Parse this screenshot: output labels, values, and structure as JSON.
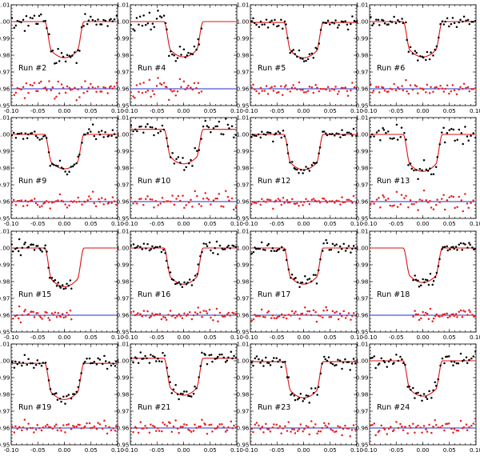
{
  "chart_data": [
    {
      "type": "scatter",
      "label": "Run #2",
      "x_ticks": [
        "-0.10",
        "-0.05",
        "0.00",
        "0.05",
        "0.10"
      ],
      "y_ticks": [
        "0.95",
        "0.96",
        "0.97",
        "0.98",
        "0.99",
        "1.00",
        "1.01"
      ],
      "xlim": [
        -0.1,
        0.1
      ],
      "ylim": [
        0.95,
        1.01
      ],
      "depth": 0.0215,
      "t14": 0.074,
      "baseline": 1.0,
      "range": [
        -0.1,
        0.1
      ],
      "n": 58,
      "scatter": 0.0022,
      "seed": 2
    },
    {
      "type": "scatter",
      "label": "Run #4",
      "x_ticks": [
        "-0.10",
        "-0.05",
        "0.00",
        "0.05",
        "0.10"
      ],
      "y_ticks": [
        "0.95",
        "0.96",
        "0.97",
        "0.98",
        "0.99",
        "1.00",
        "1.01"
      ],
      "xlim": [
        -0.1,
        0.1
      ],
      "ylim": [
        0.95,
        1.01
      ],
      "depth": 0.021,
      "t14": 0.074,
      "baseline": 1.0,
      "range": [
        -0.1,
        0.035
      ],
      "n": 40,
      "scatter": 0.003,
      "seed": 4
    },
    {
      "type": "scatter",
      "label": "Run #5",
      "x_ticks": [
        "-0.10",
        "-0.05",
        "0.00",
        "0.05",
        "0.10"
      ],
      "y_ticks": [
        "0.95",
        "0.96",
        "0.97",
        "0.98",
        "0.99",
        "1.00",
        "1.01"
      ],
      "xlim": [
        -0.1,
        0.1
      ],
      "ylim": [
        0.95,
        1.01
      ],
      "depth": 0.021,
      "t14": 0.074,
      "baseline": 0.9995,
      "range": [
        -0.1,
        0.1
      ],
      "n": 58,
      "scatter": 0.0018,
      "seed": 5
    },
    {
      "type": "scatter",
      "label": "Run #6",
      "x_ticks": [
        "-0.10",
        "-0.05",
        "0.00",
        "0.05",
        "0.10"
      ],
      "y_ticks": [
        "0.95",
        "0.96",
        "0.97",
        "0.98",
        "0.99",
        "1.00",
        "1.01"
      ],
      "xlim": [
        -0.1,
        0.1
      ],
      "ylim": [
        0.95,
        1.01
      ],
      "depth": 0.021,
      "t14": 0.074,
      "baseline": 1.0,
      "range": [
        -0.1,
        0.1
      ],
      "n": 58,
      "scatter": 0.0018,
      "seed": 6
    },
    {
      "type": "scatter",
      "label": "Run #9",
      "x_ticks": [
        "-0.10",
        "-0.05",
        "0.00",
        "0.05",
        "0.10"
      ],
      "y_ticks": [
        "0.95",
        "0.96",
        "0.97",
        "0.98",
        "0.99",
        "1.00",
        "1.01"
      ],
      "xlim": [
        -0.1,
        0.1
      ],
      "ylim": [
        0.95,
        1.01
      ],
      "depth": 0.0205,
      "t14": 0.074,
      "baseline": 1.0,
      "range": [
        -0.1,
        0.1
      ],
      "n": 58,
      "scatter": 0.0016,
      "seed": 9
    },
    {
      "type": "scatter",
      "label": "Run #10",
      "x_ticks": [
        "-0.10",
        "-0.05",
        "0.00",
        "0.05",
        "0.10"
      ],
      "y_ticks": [
        "0.95",
        "0.96",
        "0.97",
        "0.98",
        "0.99",
        "1.00",
        "1.01"
      ],
      "xlim": [
        -0.1,
        0.1
      ],
      "ylim": [
        0.95,
        1.01
      ],
      "depth": 0.0205,
      "t14": 0.074,
      "baseline": 1.003,
      "range": [
        -0.1,
        0.1
      ],
      "n": 52,
      "scatter": 0.0025,
      "seed": 10
    },
    {
      "type": "scatter",
      "label": "Run #12",
      "x_ticks": [
        "-0.10",
        "-0.05",
        "0.00",
        "0.05",
        "0.10"
      ],
      "y_ticks": [
        "0.95",
        "0.96",
        "0.97",
        "0.98",
        "0.99",
        "1.00",
        "1.01"
      ],
      "xlim": [
        -0.1,
        0.1
      ],
      "ylim": [
        0.95,
        1.01
      ],
      "depth": 0.021,
      "t14": 0.074,
      "baseline": 1.0,
      "range": [
        -0.1,
        0.1
      ],
      "n": 60,
      "scatter": 0.0016,
      "seed": 12
    },
    {
      "type": "scatter",
      "label": "Run #13",
      "x_ticks": [
        "-0.10",
        "-0.05",
        "0.00",
        "0.05",
        "0.10"
      ],
      "y_ticks": [
        "0.95",
        "0.96",
        "0.97",
        "0.98",
        "0.99",
        "1.00",
        "1.01"
      ],
      "xlim": [
        -0.1,
        0.1
      ],
      "ylim": [
        0.95,
        1.01
      ],
      "depth": 0.022,
      "t14": 0.074,
      "baseline": 1.0,
      "range": [
        -0.1,
        0.1
      ],
      "n": 54,
      "scatter": 0.0028,
      "seed": 13
    },
    {
      "type": "scatter",
      "label": "Run #15",
      "x_ticks": [
        "-0.10",
        "-0.05",
        "0.00",
        "0.05",
        "0.10"
      ],
      "y_ticks": [
        "0.95",
        "0.96",
        "0.97",
        "0.98",
        "0.99",
        "1.00",
        "1.01"
      ],
      "xlim": [
        -0.1,
        0.1
      ],
      "ylim": [
        0.95,
        1.01
      ],
      "depth": 0.023,
      "t14": 0.074,
      "baseline": 1.0,
      "range": [
        -0.1,
        0.015
      ],
      "n": 40,
      "scatter": 0.0018,
      "seed": 15
    },
    {
      "type": "scatter",
      "label": "Run #16",
      "x_ticks": [
        "-0.10",
        "-0.05",
        "0.00",
        "0.05",
        "0.10"
      ],
      "y_ticks": [
        "0.95",
        "0.96",
        "0.97",
        "0.98",
        "0.99",
        "1.00",
        "1.01"
      ],
      "xlim": [
        -0.1,
        0.1
      ],
      "ylim": [
        0.95,
        1.01
      ],
      "depth": 0.0215,
      "t14": 0.074,
      "baseline": 1.0,
      "range": [
        -0.1,
        0.1
      ],
      "n": 60,
      "scatter": 0.0018,
      "seed": 16
    },
    {
      "type": "scatter",
      "label": "Run #17",
      "x_ticks": [
        "-0.10",
        "-0.05",
        "0.00",
        "0.05",
        "0.10"
      ],
      "y_ticks": [
        "0.95",
        "0.96",
        "0.97",
        "0.98",
        "0.99",
        "1.00",
        "1.01"
      ],
      "xlim": [
        -0.1,
        0.1
      ],
      "ylim": [
        0.95,
        1.01
      ],
      "depth": 0.0215,
      "t14": 0.074,
      "baseline": 1.0,
      "range": [
        -0.1,
        0.1
      ],
      "n": 60,
      "scatter": 0.0018,
      "seed": 17
    },
    {
      "type": "scatter",
      "label": "Run #18",
      "x_ticks": [
        "-0.10",
        "-0.05",
        "0.00",
        "0.05",
        "0.10"
      ],
      "y_ticks": [
        "0.95",
        "0.96",
        "0.97",
        "0.98",
        "0.99",
        "1.00",
        "1.01"
      ],
      "xlim": [
        -0.1,
        0.1
      ],
      "ylim": [
        0.95,
        1.01
      ],
      "depth": 0.0205,
      "t14": 0.074,
      "baseline": 1.0,
      "range": [
        -0.02,
        0.1
      ],
      "n": 40,
      "scatter": 0.0018,
      "seed": 18
    },
    {
      "type": "scatter",
      "label": "Run #19",
      "x_ticks": [
        "-0.10",
        "-0.05",
        "0.00",
        "0.05",
        "0.10"
      ],
      "y_ticks": [
        "0.95",
        "0.96",
        "0.97",
        "0.98",
        "0.99",
        "1.00",
        "1.01"
      ],
      "xlim": [
        -0.1,
        0.1
      ],
      "ylim": [
        0.95,
        1.01
      ],
      "depth": 0.0215,
      "t14": 0.074,
      "baseline": 0.9985,
      "range": [
        -0.1,
        0.1
      ],
      "n": 58,
      "scatter": 0.0018,
      "seed": 19
    },
    {
      "type": "scatter",
      "label": "Run #21",
      "x_ticks": [
        "-0.10",
        "-0.05",
        "0.00",
        "0.05",
        "0.10"
      ],
      "y_ticks": [
        "0.95",
        "0.96",
        "0.97",
        "0.98",
        "0.99",
        "1.00",
        "1.01"
      ],
      "xlim": [
        -0.1,
        0.1
      ],
      "ylim": [
        0.95,
        1.01
      ],
      "depth": 0.022,
      "t14": 0.074,
      "baseline": 1.0015,
      "range": [
        -0.1,
        0.1
      ],
      "n": 60,
      "scatter": 0.0018,
      "seed": 21
    },
    {
      "type": "scatter",
      "label": "Run #23",
      "x_ticks": [
        "-0.10",
        "-0.05",
        "0.00",
        "0.05",
        "0.10"
      ],
      "y_ticks": [
        "0.95",
        "0.96",
        "0.97",
        "0.98",
        "0.99",
        "1.00",
        "1.01"
      ],
      "xlim": [
        -0.1,
        0.1
      ],
      "ylim": [
        0.95,
        1.01
      ],
      "depth": 0.0215,
      "t14": 0.074,
      "baseline": 0.9995,
      "range": [
        -0.1,
        0.1
      ],
      "n": 60,
      "scatter": 0.0022,
      "seed": 23
    },
    {
      "type": "scatter",
      "label": "Run #24",
      "x_ticks": [
        "-0.10",
        "-0.05",
        "0.00",
        "0.05",
        "0.10"
      ],
      "y_ticks": [
        "0.95",
        "0.96",
        "0.97",
        "0.98",
        "0.99",
        "1.00",
        "1.01"
      ],
      "xlim": [
        -0.1,
        0.1
      ],
      "ylim": [
        0.95,
        1.01
      ],
      "depth": 0.021,
      "t14": 0.074,
      "baseline": 1.0,
      "range": [
        -0.1,
        0.1
      ],
      "n": 58,
      "scatter": 0.002,
      "seed": 24
    }
  ],
  "residual_offset": 0.96,
  "colors": {
    "data": "#000000",
    "model": "#e01010",
    "residuals": "#e82020",
    "zero_line": "#1f2fd0"
  }
}
